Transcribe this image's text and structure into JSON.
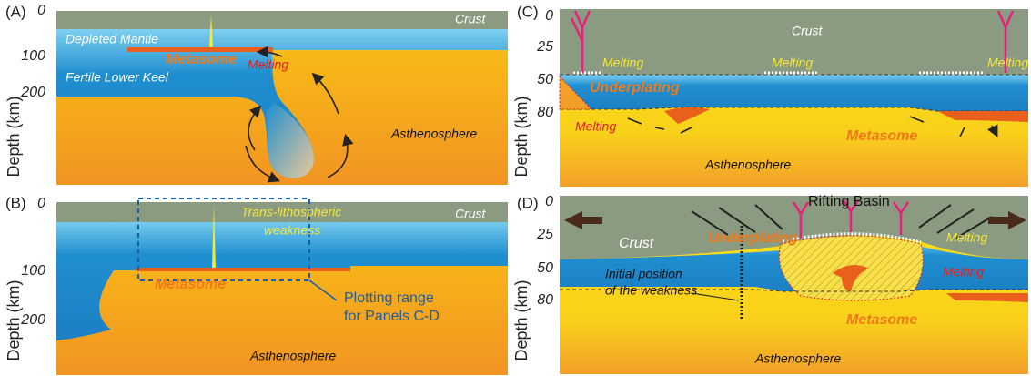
{
  "panels": [
    {
      "label": "(A)",
      "depth_ticks": [
        0,
        100,
        200
      ],
      "axis_label": "Depth (km)",
      "texts": [
        "Crust",
        "Depleted Mantle",
        "Metasome",
        "Melting",
        "Fertile Lower Keel",
        "Asthenosphere"
      ]
    },
    {
      "label": "(B)",
      "depth_ticks": [
        0,
        100,
        200
      ],
      "axis_label": "Depth (km)",
      "texts": [
        "Crust",
        "Trans-lithospheric",
        "weakness",
        "Metasome",
        "Plotting range",
        "for Panels C-D",
        "Asthenosphere"
      ]
    },
    {
      "label": "(C)",
      "depth_ticks": [
        0,
        25,
        50,
        80
      ],
      "axis_label": "Depth (km)",
      "texts": [
        "Crust",
        "Melting",
        "Melting",
        "Melting",
        "Underplating",
        "Melting",
        "Metasome",
        "Asthenosphere"
      ]
    },
    {
      "label": "(D)",
      "depth_ticks": [
        0,
        25,
        50,
        80
      ],
      "axis_label": "Depth (km)",
      "texts": [
        "Rifting Basin",
        "Crust",
        "Underplating",
        "Melting",
        "Initial position",
        "of the weakness",
        "Melting",
        "Metasome",
        "Asthenosphere"
      ]
    }
  ]
}
